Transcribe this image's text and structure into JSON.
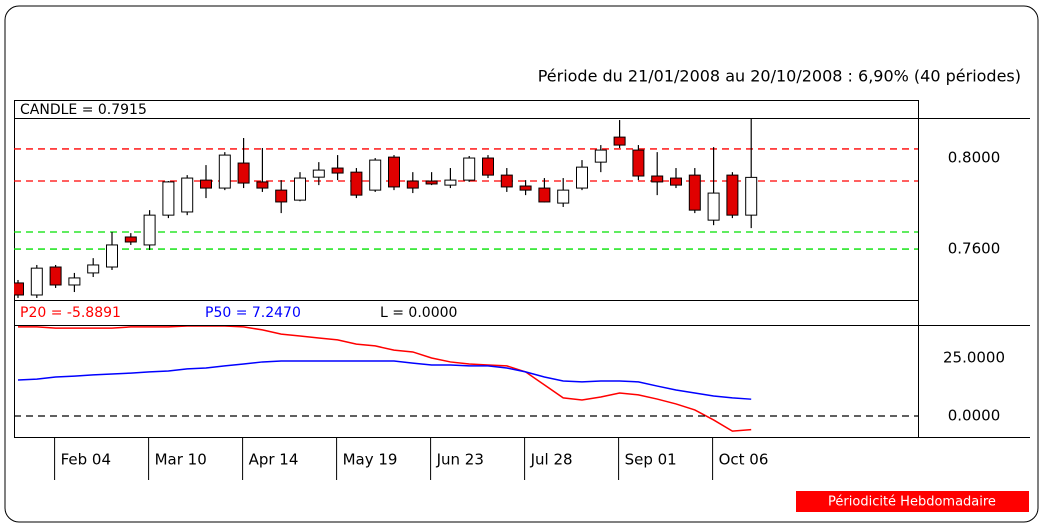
{
  "title": "Période du 21/01/2008 au 20/10/2008 : 6,90% (40 périodes)",
  "footer": "Périodicité Hebdomadaire",
  "chart_data": [
    {
      "type": "candlestick",
      "header": "CANDLE = 0.7915",
      "open": [
        0.7451,
        0.7398,
        0.7521,
        0.7442,
        0.7495,
        0.7521,
        0.7653,
        0.7618,
        0.7749,
        0.7763,
        0.7903,
        0.7868,
        0.7978,
        0.7895,
        0.7859,
        0.7815,
        0.7916,
        0.7956,
        0.7938,
        0.7859,
        0.8004,
        0.7899,
        0.7899,
        0.7881,
        0.7903,
        0.8,
        0.7925,
        0.7877,
        0.7868,
        0.7802,
        0.7868,
        0.7982,
        0.8092,
        0.8035,
        0.7921,
        0.7912,
        0.7925,
        0.7727,
        0.7925,
        0.7749
      ],
      "high": [
        0.7464,
        0.753,
        0.753,
        0.7495,
        0.756,
        0.7675,
        0.767,
        0.7771,
        0.7899,
        0.7925,
        0.7969,
        0.8026,
        0.8088,
        0.8044,
        0.7903,
        0.7938,
        0.7982,
        0.8013,
        0.7956,
        0.8,
        0.8013,
        0.7938,
        0.7938,
        0.7956,
        0.8009,
        0.8013,
        0.7956,
        0.7903,
        0.7912,
        0.7912,
        0.7991,
        0.8057,
        0.8167,
        0.8057,
        0.8026,
        0.7956,
        0.7956,
        0.8048,
        0.7938,
        0.8176
      ],
      "low": [
        0.7385,
        0.7385,
        0.7429,
        0.7411,
        0.7477,
        0.7508,
        0.7618,
        0.7596,
        0.7736,
        0.7749,
        0.7824,
        0.7859,
        0.7868,
        0.7851,
        0.7758,
        0.781,
        0.7881,
        0.7903,
        0.7824,
        0.7851,
        0.7859,
        0.7846,
        0.7881,
        0.7868,
        0.7895,
        0.7912,
        0.7851,
        0.7837,
        0.7805,
        0.7785,
        0.7859,
        0.7938,
        0.8044,
        0.7903,
        0.7837,
        0.7868,
        0.7758,
        0.7705,
        0.7736,
        0.7692
      ],
      "close": [
        0.7398,
        0.7516,
        0.7442,
        0.7473,
        0.753,
        0.7618,
        0.7631,
        0.7749,
        0.7895,
        0.7912,
        0.7868,
        0.8013,
        0.789,
        0.7868,
        0.7807,
        0.7912,
        0.7947,
        0.7934,
        0.7837,
        0.7991,
        0.7873,
        0.7868,
        0.7886,
        0.7903,
        0.8,
        0.7925,
        0.7873,
        0.7859,
        0.7807,
        0.7859,
        0.796,
        0.8035,
        0.8057,
        0.7921,
        0.7895,
        0.7881,
        0.7771,
        0.7846,
        0.7749,
        0.7915
      ],
      "up_color": "#ffffff",
      "down_color": "#e00000",
      "levels": [
        {
          "value": 0.804,
          "color": "#ff0000"
        },
        {
          "value": 0.7899,
          "color": "#ff0000"
        },
        {
          "value": 0.7675,
          "color": "#00e000"
        },
        {
          "value": 0.76,
          "color": "#00e000"
        }
      ],
      "ylim": [
        0.7376,
        0.8176
      ],
      "yticks": [
        {
          "value": 0.8,
          "label": "0.8000"
        },
        {
          "value": 0.76,
          "label": "0.7600"
        }
      ]
    },
    {
      "type": "line",
      "categories": [
        null,
        null,
        "Feb 04",
        null,
        null,
        null,
        null,
        "Mar 10",
        null,
        null,
        null,
        null,
        "Apr 14",
        null,
        null,
        null,
        null,
        "May 19",
        null,
        null,
        null,
        null,
        "Jun 23",
        null,
        null,
        null,
        null,
        "Jul 28",
        null,
        null,
        null,
        null,
        "Sep 01",
        null,
        null,
        null,
        null,
        "Oct 06",
        null,
        null
      ],
      "series": [
        {
          "label": "P20 = -5.8891",
          "color": "#ff0000",
          "values": [
            38.4,
            38.4,
            37.9,
            37.9,
            37.9,
            37.9,
            38.4,
            38.4,
            38.4,
            38.8,
            38.8,
            38.8,
            38.4,
            37.1,
            35.3,
            34.5,
            33.6,
            32.8,
            31.0,
            30.2,
            28.4,
            27.6,
            25.0,
            23.3,
            22.4,
            22.0,
            21.6,
            19.0,
            13.4,
            7.8,
            6.9,
            8.2,
            9.9,
            9.1,
            7.3,
            5.2,
            2.6,
            -1.7,
            -6.5,
            -5.8891
          ]
        },
        {
          "label": "P50 = 7.2470",
          "color": "#0000ff",
          "values": [
            15.5,
            15.9,
            16.8,
            17.2,
            17.7,
            18.1,
            18.5,
            19.0,
            19.4,
            20.3,
            20.7,
            21.6,
            22.4,
            23.3,
            23.7,
            23.7,
            23.7,
            23.7,
            23.7,
            23.7,
            23.7,
            22.8,
            22.0,
            22.0,
            21.6,
            21.6,
            20.7,
            19.0,
            16.8,
            15.1,
            14.7,
            15.1,
            15.1,
            14.7,
            12.9,
            11.2,
            9.9,
            8.6,
            7.8,
            7.247
          ]
        }
      ],
      "levels": [
        {
          "label": "L = 0.0000",
          "value": 0,
          "color": "#000000"
        }
      ],
      "ylim": [
        -9.05,
        39.22
      ],
      "yticks": [
        {
          "value": 25,
          "label": "25.0000"
        },
        {
          "value": 0,
          "label": "0.0000"
        }
      ]
    }
  ]
}
